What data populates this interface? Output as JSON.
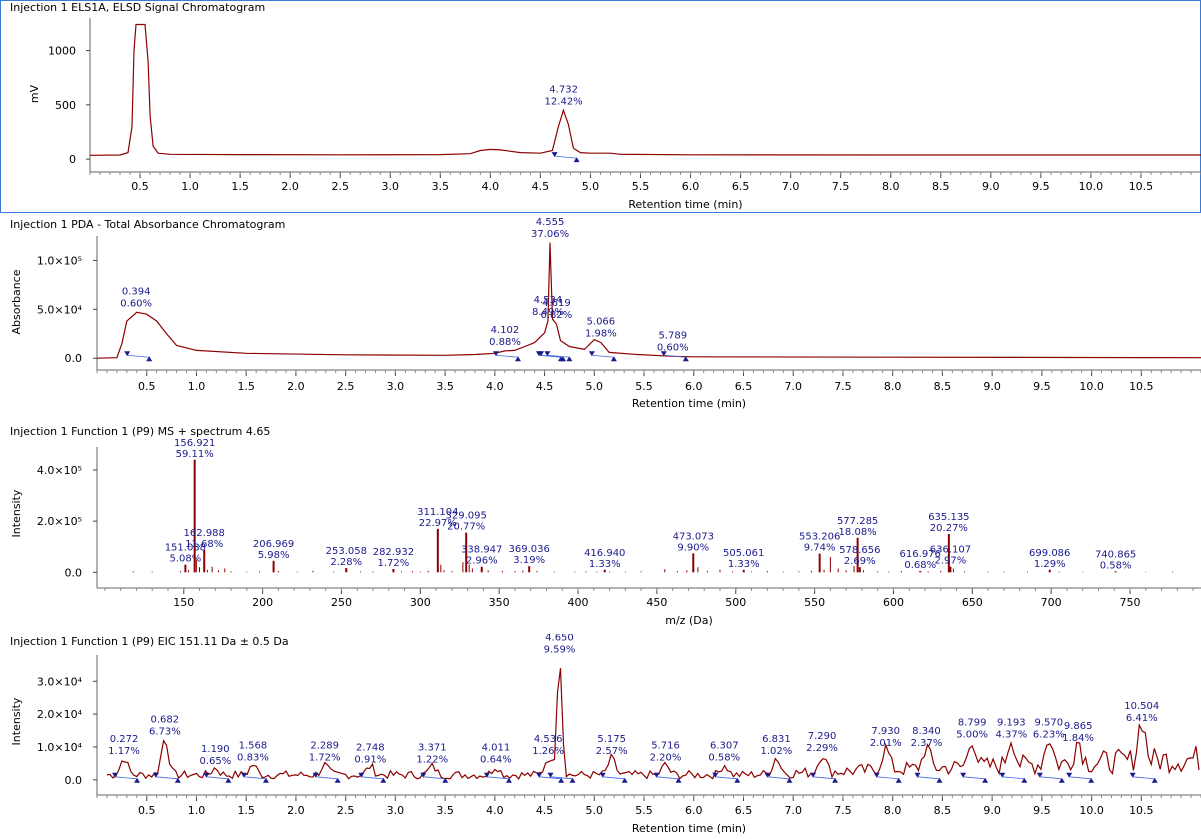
{
  "colors": {
    "trace": "#8b0000",
    "peak_label": "#1a1a8c",
    "marker": "#1a1a8c",
    "baseline": "#4169e1",
    "selected_border": "#3a7bd5"
  },
  "chart_data": [
    {
      "type": "line",
      "title": "Injection 1 ELS1A, ELSD Signal Chromatogram",
      "xlabel": "Retention time (min)",
      "ylabel": "mV",
      "xlim": [
        0.0,
        11.1
      ],
      "ylim": [
        -100,
        1300
      ],
      "xticks": [
        "0.5",
        "1.0",
        "1.5",
        "2.0",
        "2.5",
        "3.0",
        "3.5",
        "4.0",
        "4.5",
        "5.0",
        "5.5",
        "6.0",
        "6.5",
        "7.0",
        "7.5",
        "8.0",
        "8.5",
        "9.0",
        "9.5",
        "10.0",
        "10.5"
      ],
      "yticks": [
        "0",
        "500",
        "1000"
      ],
      "trace": [
        [
          0,
          35
        ],
        [
          0.3,
          38
        ],
        [
          0.38,
          60
        ],
        [
          0.42,
          300
        ],
        [
          0.44,
          1000
        ],
        [
          0.46,
          1240
        ],
        [
          0.55,
          1240
        ],
        [
          0.58,
          900
        ],
        [
          0.6,
          400
        ],
        [
          0.63,
          120
        ],
        [
          0.68,
          55
        ],
        [
          0.8,
          45
        ],
        [
          1.5,
          42
        ],
        [
          2.5,
          40
        ],
        [
          3.5,
          42
        ],
        [
          3.8,
          50
        ],
        [
          3.9,
          80
        ],
        [
          4.0,
          90
        ],
        [
          4.1,
          85
        ],
        [
          4.3,
          60
        ],
        [
          4.5,
          55
        ],
        [
          4.62,
          80
        ],
        [
          4.68,
          300
        ],
        [
          4.73,
          450
        ],
        [
          4.78,
          320
        ],
        [
          4.83,
          100
        ],
        [
          4.9,
          60
        ],
        [
          5.0,
          55
        ],
        [
          5.2,
          55
        ],
        [
          5.3,
          45
        ],
        [
          6.0,
          40
        ],
        [
          8.0,
          38
        ],
        [
          11.1,
          38
        ]
      ],
      "peaks": [
        {
          "rt": 4.732,
          "value_y": 450,
          "label": "4.732",
          "area": "12.42%"
        }
      ]
    },
    {
      "type": "line",
      "title": "Injection 1  PDA - Total Absorbance Chromatogram",
      "xlabel": "Retention time (min)",
      "ylabel": "Absorbance",
      "xlim": [
        0.0,
        11.1
      ],
      "ylim": [
        -10000,
        125000
      ],
      "xticks": [
        "0.5",
        "1.0",
        "1.5",
        "2.0",
        "2.5",
        "3.0",
        "3.5",
        "4.0",
        "4.5",
        "5.0",
        "5.5",
        "6.0",
        "6.5",
        "7.0",
        "7.5",
        "8.0",
        "8.5",
        "9.0",
        "9.5",
        "10.0",
        "10.5"
      ],
      "yticks": [
        "0.0",
        "5.0×10⁴",
        "1.0×10⁵"
      ],
      "trace": [
        [
          0,
          0
        ],
        [
          0.2,
          500
        ],
        [
          0.25,
          15000
        ],
        [
          0.3,
          38000
        ],
        [
          0.4,
          47000
        ],
        [
          0.5,
          45000
        ],
        [
          0.6,
          38000
        ],
        [
          0.7,
          25000
        ],
        [
          0.8,
          13000
        ],
        [
          1.0,
          8000
        ],
        [
          1.5,
          5000
        ],
        [
          2.5,
          3500
        ],
        [
          3.5,
          3000
        ],
        [
          3.8,
          3800
        ],
        [
          4.0,
          5000
        ],
        [
          4.1,
          7500
        ],
        [
          4.2,
          8000
        ],
        [
          4.3,
          12000
        ],
        [
          4.4,
          16000
        ],
        [
          4.5,
          26000
        ],
        [
          4.534,
          38000
        ],
        [
          4.555,
          118000
        ],
        [
          4.58,
          40000
        ],
        [
          4.619,
          35000
        ],
        [
          4.66,
          18000
        ],
        [
          4.75,
          12000
        ],
        [
          4.9,
          9000
        ],
        [
          5.0,
          19000
        ],
        [
          5.066,
          16000
        ],
        [
          5.15,
          6000
        ],
        [
          5.4,
          4000
        ],
        [
          5.789,
          2000
        ],
        [
          6.0,
          1500
        ],
        [
          8.0,
          1000
        ],
        [
          11.1,
          500
        ]
      ],
      "peaks": [
        {
          "rt": 0.394,
          "value_y": 47000,
          "label": "0.394",
          "area": "0.60%"
        },
        {
          "rt": 4.102,
          "value_y": 7500,
          "label": "4.102",
          "area": "0.88%"
        },
        {
          "rt": 4.534,
          "value_y": 38000,
          "label": "4.534",
          "area": "8.49%"
        },
        {
          "rt": 4.555,
          "value_y": 118000,
          "label": "4.555",
          "area": "37.06%"
        },
        {
          "rt": 4.619,
          "value_y": 35000,
          "label": "4.619",
          "area": "6.82%"
        },
        {
          "rt": 5.066,
          "value_y": 16000,
          "label": "5.066",
          "area": "1.98%"
        },
        {
          "rt": 5.789,
          "value_y": 2000,
          "label": "5.789",
          "area": "0.60%"
        }
      ]
    },
    {
      "type": "bar",
      "title": "Injection 1 Function 1 (P9) MS + spectrum 4.65",
      "xlabel": "m/z (Da)",
      "ylabel": "Intensity",
      "xlim": [
        95,
        795
      ],
      "ylim": [
        -30000,
        490000
      ],
      "xticks": [
        "150",
        "200",
        "250",
        "300",
        "350",
        "400",
        "450",
        "500",
        "550",
        "600",
        "650",
        "700",
        "750"
      ],
      "yticks": [
        "0.0",
        "2.0×10⁵",
        "4.0×10⁵"
      ],
      "labeled_peaks": [
        {
          "mz": 151.038,
          "value": 30000,
          "label": "151.038",
          "pct": "5.08%"
        },
        {
          "mz": 156.921,
          "value": 440000,
          "label": "156.921",
          "pct": "59.11%"
        },
        {
          "mz": 162.988,
          "value": 87000,
          "label": "162.988",
          "pct": "11.68%"
        },
        {
          "mz": 206.969,
          "value": 45000,
          "label": "206.969",
          "pct": "5.98%"
        },
        {
          "mz": 253.058,
          "value": 17000,
          "label": "253.058",
          "pct": "2.28%"
        },
        {
          "mz": 282.932,
          "value": 13000,
          "label": "282.932",
          "pct": "1.72%"
        },
        {
          "mz": 311.104,
          "value": 170000,
          "label": "311.104",
          "pct": "22.97%"
        },
        {
          "mz": 329.095,
          "value": 155000,
          "label": "329.095",
          "pct": "20.77%"
        },
        {
          "mz": 338.947,
          "value": 22000,
          "label": "338.947",
          "pct": "2.96%"
        },
        {
          "mz": 369.036,
          "value": 24000,
          "label": "369.036",
          "pct": "3.19%"
        },
        {
          "mz": 416.94,
          "value": 10000,
          "label": "416.940",
          "pct": "1.33%"
        },
        {
          "mz": 473.073,
          "value": 74000,
          "label": "473.073",
          "pct": "9.90%"
        },
        {
          "mz": 505.061,
          "value": 10000,
          "label": "505.061",
          "pct": "1.33%"
        },
        {
          "mz": 553.206,
          "value": 73000,
          "label": "553.206",
          "pct": "9.74%"
        },
        {
          "mz": 577.285,
          "value": 135000,
          "label": "577.285",
          "pct": "18.08%"
        },
        {
          "mz": 578.656,
          "value": 20000,
          "label": "578.656",
          "pct": "2.69%"
        },
        {
          "mz": 616.976,
          "value": 5000,
          "label": "616.976",
          "pct": "0.68%"
        },
        {
          "mz": 635.135,
          "value": 150000,
          "label": "635.135",
          "pct": "20.27%"
        },
        {
          "mz": 636.107,
          "value": 22000,
          "label": "636.107",
          "pct": "2.97%"
        },
        {
          "mz": 699.086,
          "value": 10000,
          "label": "699.086",
          "pct": "1.29%"
        },
        {
          "mz": 740.865,
          "value": 4000,
          "label": "740.865",
          "pct": "0.58%"
        }
      ],
      "minor_peaks": [
        [
          118,
          4000
        ],
        [
          130,
          3000
        ],
        [
          148,
          5000
        ],
        [
          153,
          8000
        ],
        [
          158,
          50000
        ],
        [
          160,
          20000
        ],
        [
          165,
          10000
        ],
        [
          168,
          22000
        ],
        [
          172,
          8000
        ],
        [
          176,
          15000
        ],
        [
          180,
          4000
        ],
        [
          190,
          3000
        ],
        [
          198,
          4000
        ],
        [
          210,
          5000
        ],
        [
          222,
          3000
        ],
        [
          232,
          6000
        ],
        [
          245,
          3000
        ],
        [
          262,
          4000
        ],
        [
          270,
          3000
        ],
        [
          288,
          4000
        ],
        [
          295,
          5000
        ],
        [
          300,
          3000
        ],
        [
          305,
          6000
        ],
        [
          313,
          30000
        ],
        [
          315,
          8000
        ],
        [
          320,
          5000
        ],
        [
          327,
          40000
        ],
        [
          331,
          30000
        ],
        [
          333,
          15000
        ],
        [
          343,
          8000
        ],
        [
          352,
          6000
        ],
        [
          360,
          5000
        ],
        [
          365,
          7000
        ],
        [
          374,
          5000
        ],
        [
          385,
          3000
        ],
        [
          398,
          3000
        ],
        [
          405,
          4000
        ],
        [
          412,
          3000
        ],
        [
          420,
          3000
        ],
        [
          430,
          3000
        ],
        [
          440,
          4000
        ],
        [
          455,
          12000
        ],
        [
          463,
          5000
        ],
        [
          469,
          8000
        ],
        [
          476,
          20000
        ],
        [
          482,
          6000
        ],
        [
          490,
          10000
        ],
        [
          498,
          4000
        ],
        [
          510,
          3000
        ],
        [
          520,
          5000
        ],
        [
          530,
          3000
        ],
        [
          540,
          4000
        ],
        [
          548,
          6000
        ],
        [
          556,
          10000
        ],
        [
          560,
          60000
        ],
        [
          565,
          15000
        ],
        [
          570,
          8000
        ],
        [
          575,
          25000
        ],
        [
          581,
          8000
        ],
        [
          590,
          4000
        ],
        [
          597,
          3000
        ],
        [
          605,
          5000
        ],
        [
          622,
          4000
        ],
        [
          630,
          6000
        ],
        [
          638,
          15000
        ],
        [
          645,
          4000
        ],
        [
          660,
          3000
        ],
        [
          670,
          3000
        ],
        [
          685,
          3000
        ],
        [
          705,
          3000
        ],
        [
          720,
          2000
        ],
        [
          760,
          2000
        ],
        [
          777,
          3000
        ]
      ]
    },
    {
      "type": "line",
      "title": "Injection 1 Function 1 (P9) EIC 151.11 Da ± 0.5 Da",
      "xlabel": "Retention time (min)",
      "ylabel": "Intensity",
      "xlim": [
        0.0,
        11.1
      ],
      "ylim": [
        -2500,
        38000
      ],
      "xticks": [
        "0.5",
        "1.0",
        "1.5",
        "2.0",
        "2.5",
        "3.0",
        "3.5",
        "4.0",
        "4.5",
        "5.0",
        "5.5",
        "6.0",
        "6.5",
        "7.0",
        "7.5",
        "8.0",
        "8.5",
        "9.0",
        "9.5",
        "10.0",
        "10.5"
      ],
      "yticks": [
        "0.0",
        "1.0×10⁴",
        "2.0×10⁴",
        "3.0×10⁴"
      ],
      "peaks": [
        {
          "rt": 0.272,
          "value_y": 6000,
          "label": "0.272",
          "area": "1.17%"
        },
        {
          "rt": 0.682,
          "value_y": 12000,
          "label": "0.682",
          "area": "6.73%"
        },
        {
          "rt": 1.19,
          "value_y": 3000,
          "label": "1.190",
          "area": "0.65%"
        },
        {
          "rt": 1.568,
          "value_y": 4000,
          "label": "1.568",
          "area": "0.83%"
        },
        {
          "rt": 2.289,
          "value_y": 4000,
          "label": "2.289",
          "area": "1.72%"
        },
        {
          "rt": 2.748,
          "value_y": 3500,
          "label": "2.748",
          "area": "0.91%"
        },
        {
          "rt": 3.371,
          "value_y": 3500,
          "label": "3.371",
          "area": "1.22%"
        },
        {
          "rt": 4.011,
          "value_y": 3500,
          "label": "4.011",
          "area": "0.64%"
        },
        {
          "rt": 4.536,
          "value_y": 6000,
          "label": "4.536",
          "area": "1.26%"
        },
        {
          "rt": 4.65,
          "value_y": 37000,
          "label": "4.650",
          "area": "9.59%"
        },
        {
          "rt": 5.175,
          "value_y": 6000,
          "label": "5.175",
          "area": "2.57%"
        },
        {
          "rt": 5.716,
          "value_y": 4000,
          "label": "5.716",
          "area": "2.20%"
        },
        {
          "rt": 6.307,
          "value_y": 4000,
          "label": "6.307",
          "area": "0.58%"
        },
        {
          "rt": 6.831,
          "value_y": 6000,
          "label": "6.831",
          "area": "1.02%"
        },
        {
          "rt": 7.29,
          "value_y": 7000,
          "label": "7.290",
          "area": "2.29%"
        },
        {
          "rt": 7.93,
          "value_y": 8500,
          "label": "7.930",
          "area": "2.01%"
        },
        {
          "rt": 8.34,
          "value_y": 8500,
          "label": "8.340",
          "area": "2.37%"
        },
        {
          "rt": 8.799,
          "value_y": 11000,
          "label": "8.799",
          "area": "5.00%"
        },
        {
          "rt": 9.193,
          "value_y": 11000,
          "label": "9.193",
          "area": "4.37%"
        },
        {
          "rt": 9.57,
          "value_y": 11000,
          "label": "9.570",
          "area": "6.23%"
        },
        {
          "rt": 9.865,
          "value_y": 10000,
          "label": "9.865",
          "area": "1.84%"
        },
        {
          "rt": 10.504,
          "value_y": 16000,
          "label": "10.504",
          "area": "6.41%"
        }
      ]
    }
  ]
}
